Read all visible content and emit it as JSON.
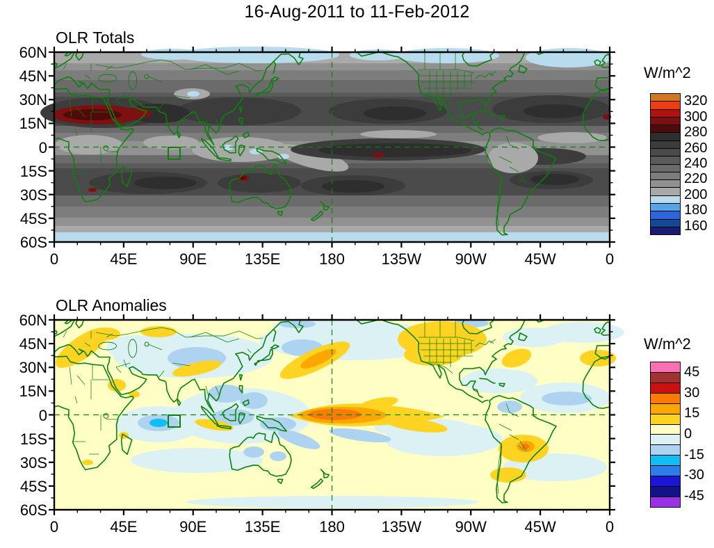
{
  "title": "16-Aug-2011 to 11-Feb-2012",
  "panels": {
    "totals": {
      "title": "OLR Totals",
      "colorbar": {
        "label": "W/m^2",
        "tick_labels": [
          "320",
          "300",
          "280",
          "260",
          "240",
          "220",
          "200",
          "180",
          "160"
        ],
        "colors": [
          "#d2771e",
          "#ee3d12",
          "#b01212",
          "#7d1010",
          "#500a0a",
          "#2e2e2e",
          "#3c3c3c",
          "#4b4b4b",
          "#5a5a5a",
          "#6b6b6b",
          "#7d7d7d",
          "#919191",
          "#a9a9a9",
          "#b8dcee",
          "#57a3e8",
          "#2b66dd",
          "#134a94",
          "#1b1b78"
        ]
      }
    },
    "anomalies": {
      "title": "OLR Anomalies",
      "colorbar": {
        "label": "W/m^2",
        "tick_labels": [
          "45",
          "30",
          "15",
          "0",
          "-15",
          "-30",
          "-45"
        ],
        "colors": [
          "#ff6eb4",
          "#a03232",
          "#cc0f0f",
          "#f77b05",
          "#fea600",
          "#fed322",
          "#ffffc5",
          "#dbf1f4",
          "#aed3f0",
          "#10bef5",
          "#2e7ce8",
          "#1a15d9",
          "#131387",
          "#9a30e8"
        ]
      }
    }
  },
  "axes": {
    "x_tick_labels": [
      "0",
      "45E",
      "90E",
      "135E",
      "180",
      "135W",
      "90W",
      "45W",
      "0"
    ],
    "y_tick_labels": [
      "60N",
      "45N",
      "30N",
      "15N",
      "0",
      "15S",
      "30S",
      "45S",
      "60S"
    ]
  },
  "map_overlay": {
    "coastline_color": "#0a820a",
    "equator_line": "dashed green at 0 latitude",
    "dateline_line": "dashed green at 180 longitude",
    "study_region_box": "green box ~74E-81E, 0-7.5S"
  },
  "chart_data": [
    {
      "type": "heatmap",
      "subtype": "filled_contour_map",
      "title": "OLR Totals",
      "period": "16-Aug-2011 to 11-Feb-2012",
      "units": "W/m^2",
      "projection": "cylindrical equidistant, global 0E eastward through 180 back to 0",
      "lat_range": [
        "60S",
        "60N"
      ],
      "x_tick_labels": [
        "0",
        "45E",
        "90E",
        "135E",
        "180",
        "135W",
        "90W",
        "45W",
        "0"
      ],
      "y_tick_labels": [
        "60N",
        "45N",
        "30N",
        "15N",
        "0",
        "15S",
        "30S",
        "45S",
        "60S"
      ],
      "contour_interval": 10,
      "labeled_levels": [
        160,
        180,
        200,
        220,
        240,
        260,
        280,
        300,
        320
      ],
      "colors_top_to_bottom": [
        "#d2771e",
        "#ee3d12",
        "#b01212",
        "#7d1010",
        "#500a0a",
        "#2e2e2e",
        "#3c3c3c",
        "#4b4b4b",
        "#5a5a5a",
        "#6b6b6b",
        "#7d7d7d",
        "#919191",
        "#a9a9a9",
        "#b8dcee",
        "#57a3e8",
        "#2b66dd",
        "#134a94",
        "#1b1b78"
      ],
      "features": [
        "Dark shading (high OLR ~260-290) in subtropical bands ~10-30N and ~10-35S in all ocean basins",
        "Dark red maxima (>290) across the Sahara/Sahel and Arabian Peninsula (~0-60E, 10-27N)",
        "Dark equatorial tongue (~270-285) in central/eastern Pacific with small >290 spot near 115W 5S",
        "Lighter grays (~200-230, deep convection) over equatorial Africa, Maritime Continent, Amazon and Atlantic ITCZ near 5N",
        "Light blue (<200) along poleward edges (~50-60N and 50-60S) and a small spot near the Tibetan Plateau",
        "Small >290 spots over southern Africa and northwest Australia"
      ]
    },
    {
      "type": "heatmap",
      "subtype": "filled_contour_map",
      "title": "OLR Anomalies",
      "period": "16-Aug-2011 to 11-Feb-2012",
      "units": "W/m^2",
      "projection": "cylindrical equidistant, global 0E eastward through 180 back to 0",
      "lat_range": [
        "60S",
        "60N"
      ],
      "x_tick_labels": [
        "0",
        "45E",
        "90E",
        "135E",
        "180",
        "135W",
        "90W",
        "45W",
        "0"
      ],
      "y_tick_labels": [
        "60N",
        "45N",
        "30N",
        "15N",
        "0",
        "15S",
        "30S",
        "45S",
        "60S"
      ],
      "contour_interval": 7.5,
      "labeled_levels": [
        -45,
        -30,
        -15,
        0,
        15,
        30,
        45
      ],
      "colors_top_to_bottom": [
        "#ff6eb4",
        "#a03232",
        "#cc0f0f",
        "#f77b05",
        "#fea600",
        "#fed322",
        "#ffffc5",
        "#dbf1f4",
        "#aed3f0",
        "#10bef5",
        "#2e7ce8",
        "#1a15d9",
        "#131387",
        "#9a30e8"
      ],
      "features": [
        "Strong positive anomaly (+15 to +30, deep orange core) centered on the equator near the Date Line (~165E-165W), tapering gold tail east-southeastward to ~120W",
        "Positive (gold, ~+8 to +15) over the US/western Canada, Balkans/eastern Europe, Kazakhstan, Himalayas, a NE-tilted North Pacific band near 30N, Morocco, and southeast Brazil (~+22 orange core)",
        "Negative (light blue, -8 to -15) over the Maritime Continent, central Asia/Tibet, tropical Atlantic and Venezuela, North Pacific 40-55N, Australia interior and southern Indian Ocean",
        "Cyan minimum (~-22) in the equatorial Indian Ocean near 67E 5S",
        "Background near zero (pale yellow) elsewhere"
      ]
    }
  ]
}
